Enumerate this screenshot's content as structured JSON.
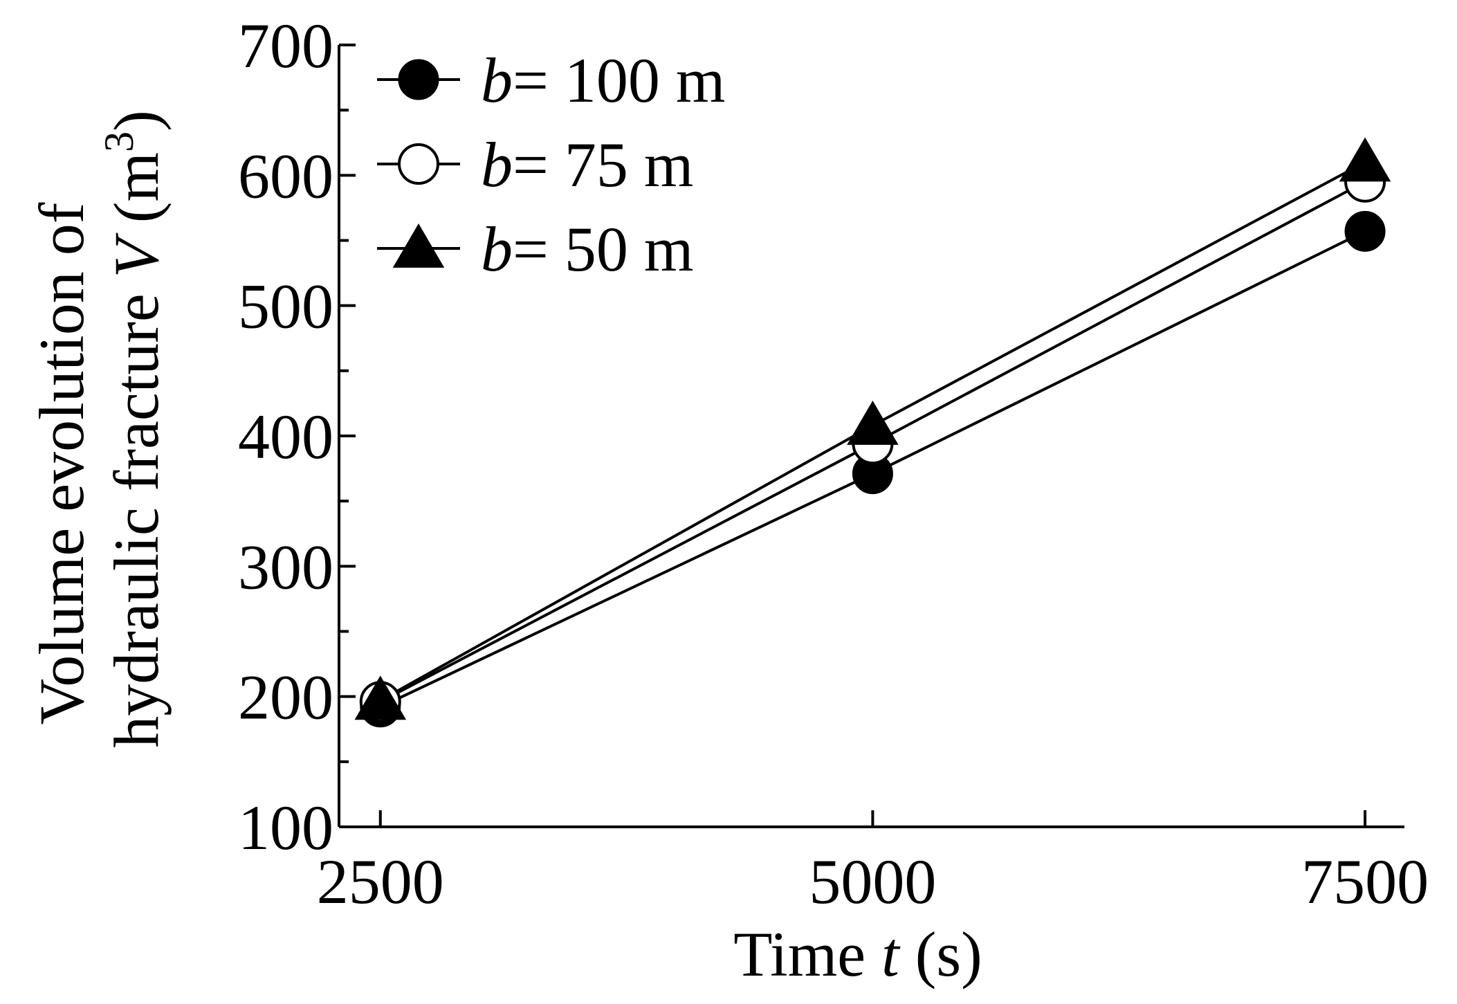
{
  "chart_data": {
    "type": "line",
    "title": "",
    "xlabel": {
      "prefix": "Time ",
      "var": "t",
      "suffix": " (s)"
    },
    "ylabel": {
      "line1": "Volume evolution of",
      "line2_prefix": "hydraulic fracture ",
      "line2_var": "V",
      "line2_unit": " (m",
      "line2_sup": "3",
      "line2_close": ")"
    },
    "x": [
      2500,
      5000,
      7500
    ],
    "xticks": [
      "2500",
      "5000",
      "7500"
    ],
    "xlim": [
      2290,
      7700
    ],
    "ylim": [
      100,
      700
    ],
    "yticks": [
      "100",
      "200",
      "300",
      "400",
      "500",
      "600",
      "700"
    ],
    "yminor": [
      150,
      250,
      350,
      450,
      550,
      650
    ],
    "grid": false,
    "legend_position": "top-left",
    "series": [
      {
        "name": "b= 100 m",
        "var": "b",
        "rest": "= 100 m",
        "marker": "filled-circle",
        "values": [
          192,
          371,
          557
        ]
      },
      {
        "name": "b= 75 m",
        "var": "b",
        "rest": "= 75 m",
        "marker": "open-circle",
        "values": [
          196,
          394,
          595
        ]
      },
      {
        "name": "b= 50 m",
        "var": "b",
        "rest": "= 50 m",
        "marker": "filled-triangle",
        "values": [
          197,
          408,
          610
        ]
      }
    ]
  }
}
